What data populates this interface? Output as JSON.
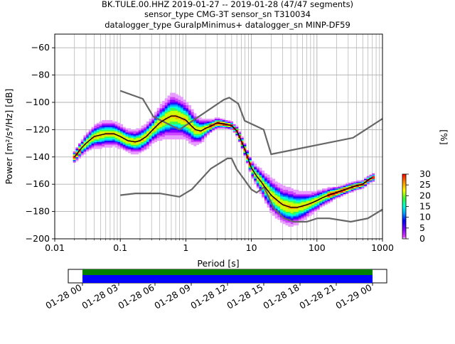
{
  "title_lines": [
    "BK.TULE.00.HHZ   2019-01-27 -- 2019-01-28  (47/47 segments)",
    "sensor_type CMG-3T sensor_sn T310034",
    "datalogger_type GuralpMinimus+ datalogger_sn MINP-DF59"
  ],
  "chart_data": {
    "type": "heatmap",
    "xlabel": "Period [s]",
    "ylabel": "Power [m²/s⁴/Hz] [dB]",
    "x_scale": "log",
    "xlim": [
      0.01,
      1000
    ],
    "ylim": [
      -200,
      -50
    ],
    "x_ticks": [
      {
        "v": 0.01,
        "label": "0.01"
      },
      {
        "v": 0.1,
        "label": "0.1"
      },
      {
        "v": 1,
        "label": "1"
      },
      {
        "v": 10,
        "label": "10"
      },
      {
        "v": 100,
        "label": "100"
      },
      {
        "v": 1000,
        "label": "1000"
      }
    ],
    "y_ticks": [
      -60,
      -80,
      -100,
      -120,
      -140,
      -160,
      -180,
      -200
    ],
    "grid": true,
    "nhnm": {
      "period": [
        0.1,
        0.22,
        0.32,
        0.8,
        3.8,
        4.6,
        6.3,
        7.9,
        15.4,
        20,
        354.8,
        1000
      ],
      "power": [
        -91.5,
        -97.4,
        -110.5,
        -120,
        -98,
        -96.5,
        -101,
        -113.5,
        -120,
        -138,
        -126,
        -112
      ]
    },
    "nlnm": {
      "period": [
        0.1,
        0.17,
        0.4,
        0.8,
        1.24,
        2.4,
        4.3,
        5,
        6,
        10,
        12,
        15.6,
        21.9,
        31.6,
        45,
        70,
        101,
        154,
        328,
        600,
        1000
      ],
      "power": [
        -168,
        -166.7,
        -166.7,
        -169.2,
        -163.7,
        -148.6,
        -141.1,
        -141.1,
        -149,
        -163.8,
        -166.2,
        -162.1,
        -177.5,
        -185,
        -187.5,
        -187.5,
        -185,
        -185,
        -187.5,
        -185,
        -178.5
      ]
    },
    "mode": {
      "period": [
        0.02,
        0.025,
        0.03,
        0.04,
        0.06,
        0.08,
        0.1,
        0.13,
        0.17,
        0.2,
        0.25,
        0.3,
        0.4,
        0.5,
        0.6,
        0.7,
        0.8,
        1.0,
        1.2,
        1.4,
        1.7,
        2.0,
        2.5,
        3.0,
        4.0,
        5.0,
        6.0,
        7.0,
        8.0,
        9.0,
        10,
        12,
        14,
        16,
        18,
        20,
        25,
        30,
        40,
        50,
        60,
        70,
        80,
        100,
        120,
        150,
        200,
        300,
        400,
        500,
        600,
        700
      ],
      "power": [
        -140,
        -134,
        -130,
        -125,
        -123,
        -123,
        -125,
        -128,
        -129,
        -128,
        -125,
        -121,
        -115,
        -112,
        -110,
        -110,
        -111,
        -113,
        -117,
        -120,
        -121,
        -119,
        -117,
        -115,
        -116,
        -117,
        -121,
        -128,
        -135,
        -142,
        -148,
        -154,
        -158,
        -162,
        -165,
        -168,
        -172,
        -175,
        -177,
        -177,
        -176,
        -175,
        -174,
        -172,
        -170,
        -168,
        -166,
        -163,
        -161,
        -160,
        -157,
        -155
      ]
    },
    "colorbar": {
      "label": "[%]",
      "min": 0,
      "max": 30,
      "ticks": [
        "0",
        "5",
        "10",
        "15",
        "20",
        "25",
        "30"
      ]
    },
    "timeline": {
      "tick_labels": [
        "01-28 00",
        "01-28 03",
        "01-28 06",
        "01-28 09",
        "01-28 12",
        "01-28 15",
        "01-28 18",
        "01-28 21",
        "01-29 00"
      ],
      "bar_colors": [
        "#008000",
        "#0000ff"
      ]
    }
  },
  "colors": {
    "noise_model": "#666666",
    "mode_line": "#000000",
    "grid": "#b0b0b0"
  }
}
